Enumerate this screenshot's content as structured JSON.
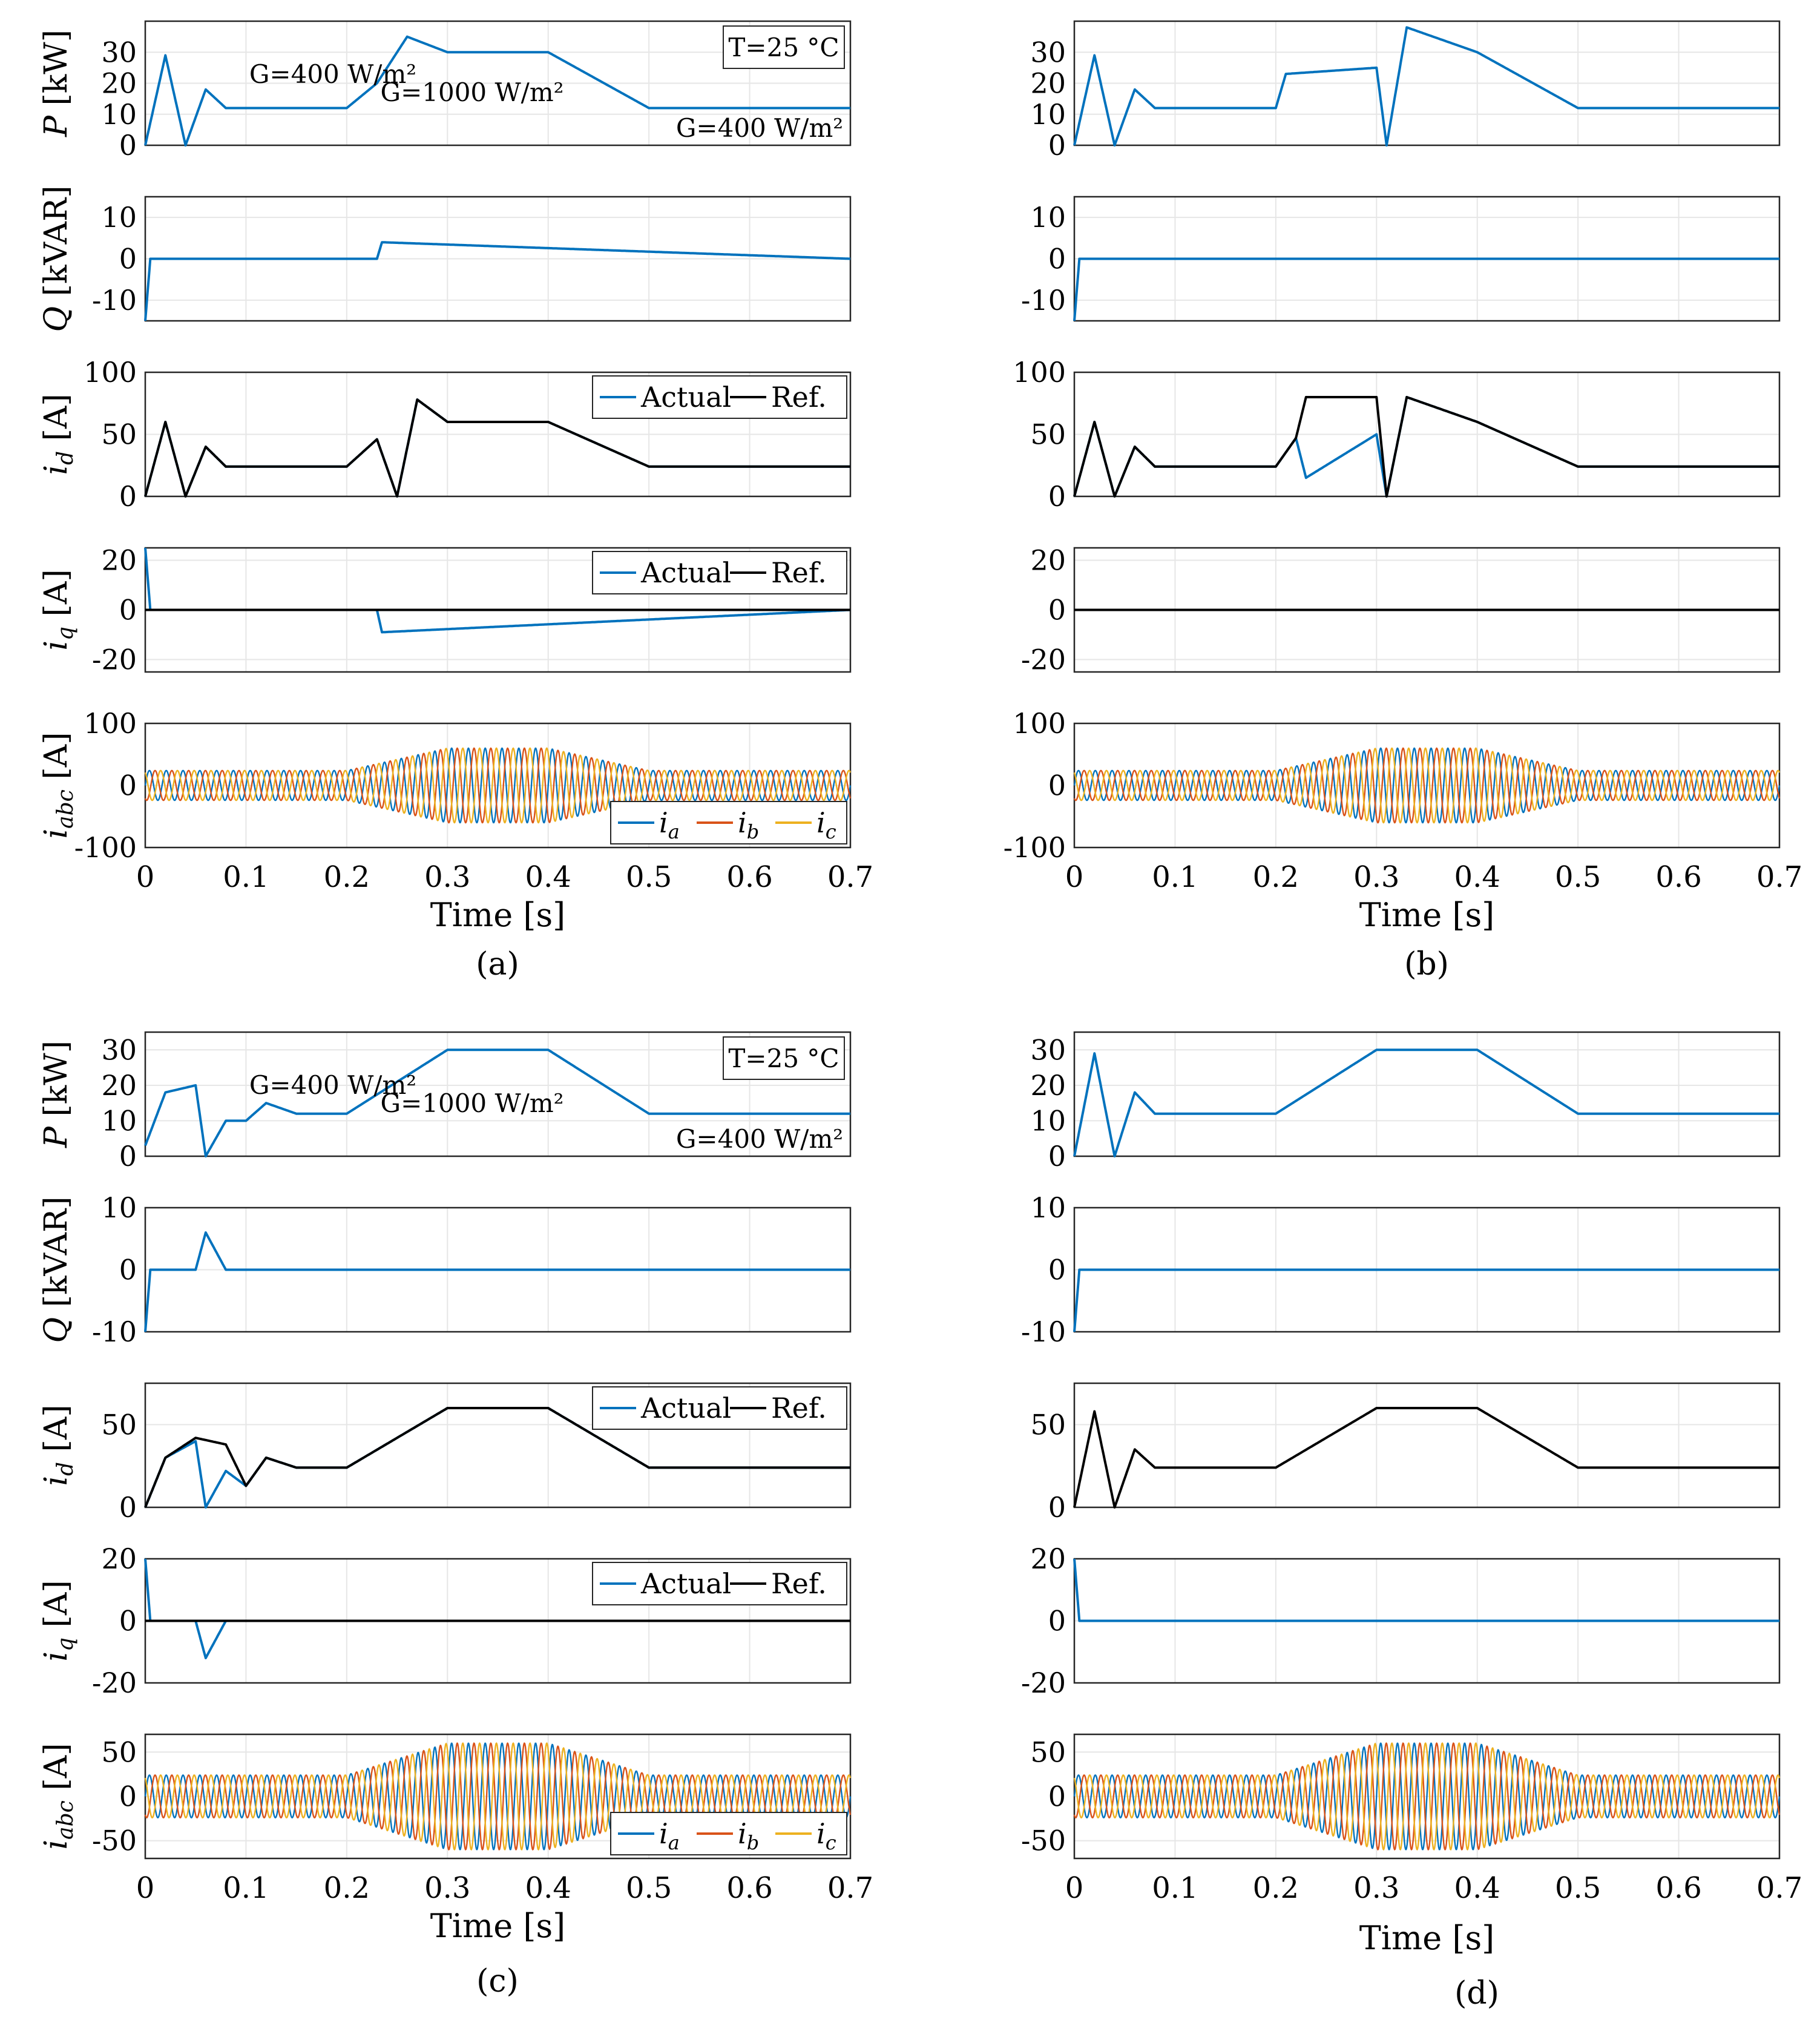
{
  "panels": [
    {
      "caption": "(a)",
      "temperature_label": "T=25 °C",
      "annotations": [
        "G=400 W/m²",
        "G=1000 W/m²",
        "G=400 W/m²"
      ],
      "xlabel": "Time [s]",
      "xticks": [
        "0",
        "0.1",
        "0.2",
        "0.3",
        "0.4",
        "0.5",
        "0.6",
        "0.7"
      ],
      "subplots": [
        {
          "ylabel": "P [kW]",
          "yticks": [
            "0",
            "10",
            "20",
            "30"
          ],
          "ylim": [
            0,
            40
          ]
        },
        {
          "ylabel": "Q [kVAR]",
          "yticks": [
            "-10",
            "0",
            "10"
          ],
          "ylim": [
            -15,
            15
          ]
        },
        {
          "ylabel": "i_d [A]",
          "yticks": [
            "0",
            "50",
            "100"
          ],
          "ylim": [
            0,
            100
          ],
          "legend": [
            "Actual",
            "Ref."
          ]
        },
        {
          "ylabel": "i_q [A]",
          "yticks": [
            "-20",
            "0",
            "20"
          ],
          "ylim": [
            -25,
            25
          ],
          "legend": [
            "Actual",
            "Ref."
          ]
        },
        {
          "ylabel": "i_abc [A]",
          "yticks": [
            "-100",
            "0",
            "100"
          ],
          "ylim": [
            -100,
            100
          ],
          "legend": [
            "i_a",
            "i_b",
            "i_c"
          ]
        }
      ]
    },
    {
      "caption": "(b)",
      "xlabel": "Time [s]",
      "xticks": [
        "0",
        "0.1",
        "0.2",
        "0.3",
        "0.4",
        "0.5",
        "0.6",
        "0.7"
      ],
      "subplots": [
        {
          "ylabel": "",
          "yticks": [
            "0",
            "10",
            "20",
            "30"
          ],
          "ylim": [
            0,
            40
          ]
        },
        {
          "ylabel": "",
          "yticks": [
            "-10",
            "0",
            "10"
          ],
          "ylim": [
            -15,
            15
          ]
        },
        {
          "ylabel": "",
          "yticks": [
            "0",
            "50",
            "100"
          ],
          "ylim": [
            0,
            100
          ]
        },
        {
          "ylabel": "",
          "yticks": [
            "-20",
            "0",
            "20"
          ],
          "ylim": [
            -25,
            25
          ]
        },
        {
          "ylabel": "",
          "yticks": [
            "-100",
            "0",
            "100"
          ],
          "ylim": [
            -100,
            100
          ]
        }
      ]
    },
    {
      "caption": "(c)",
      "temperature_label": "T=25 °C",
      "annotations": [
        "G=400 W/m²",
        "G=1000 W/m²",
        "G=400 W/m²"
      ],
      "xlabel": "Time [s]",
      "xticks": [
        "0",
        "0.1",
        "0.2",
        "0.3",
        "0.4",
        "0.5",
        "0.6",
        "0.7"
      ],
      "subplots": [
        {
          "ylabel": "P [kW]",
          "yticks": [
            "0",
            "10",
            "20",
            "30"
          ],
          "ylim": [
            0,
            35
          ]
        },
        {
          "ylabel": "Q [kVAR]",
          "yticks": [
            "-10",
            "0",
            "10"
          ],
          "ylim": [
            -10,
            10
          ]
        },
        {
          "ylabel": "i_d [A]",
          "yticks": [
            "0",
            "50"
          ],
          "ylim": [
            0,
            75
          ],
          "legend": [
            "Actual",
            "Ref."
          ]
        },
        {
          "ylabel": "i_q [A]",
          "yticks": [
            "-20",
            "0",
            "20"
          ],
          "ylim": [
            -20,
            20
          ],
          "legend": [
            "Actual",
            "Ref."
          ]
        },
        {
          "ylabel": "i_abc [A]",
          "yticks": [
            "-50",
            "0",
            "50"
          ],
          "ylim": [
            -70,
            70
          ],
          "legend": [
            "i_a",
            "i_b",
            "i_c"
          ]
        }
      ]
    },
    {
      "caption": "(d)",
      "xlabel": "Time [s]",
      "xticks": [
        "0",
        "0.1",
        "0.2",
        "0.3",
        "0.4",
        "0.5",
        "0.6",
        "0.7"
      ],
      "subplots": [
        {
          "ylabel": "",
          "yticks": [
            "0",
            "10",
            "20",
            "30"
          ],
          "ylim": [
            0,
            35
          ]
        },
        {
          "ylabel": "",
          "yticks": [
            "-10",
            "0",
            "10"
          ],
          "ylim": [
            -10,
            10
          ]
        },
        {
          "ylabel": "",
          "yticks": [
            "0",
            "50"
          ],
          "ylim": [
            0,
            75
          ]
        },
        {
          "ylabel": "",
          "yticks": [
            "-20",
            "0",
            "20"
          ],
          "ylim": [
            -20,
            20
          ]
        },
        {
          "ylabel": "",
          "yticks": [
            "-50",
            "0",
            "50"
          ],
          "ylim": [
            -70,
            70
          ]
        }
      ]
    }
  ],
  "chart_data": [
    {
      "type": "line",
      "title": "",
      "xlabel": "Time [s]",
      "xlim": [
        0,
        0.7
      ],
      "series": [
        {
          "name": "P",
          "x": [
            0,
            0.02,
            0.04,
            0.06,
            0.08,
            0.2,
            0.23,
            0.26,
            0.3,
            0.4,
            0.5,
            0.52,
            0.7
          ],
          "values": [
            0,
            29,
            0,
            18,
            12,
            12,
            20,
            35,
            30,
            30,
            12,
            12,
            12
          ]
        },
        {
          "name": "Q",
          "x": [
            0,
            0.005,
            0.1,
            0.23,
            0.235,
            0.7
          ],
          "values": [
            -15,
            0,
            0,
            0,
            4,
            0
          ]
        },
        {
          "name": "i_d Actual",
          "x": [
            0,
            0.02,
            0.04,
            0.06,
            0.08,
            0.2,
            0.23,
            0.25,
            0.27,
            0.3,
            0.4,
            0.5,
            0.52,
            0.7
          ],
          "values": [
            0,
            60,
            0,
            40,
            24,
            24,
            46,
            0,
            78,
            60,
            60,
            24,
            24,
            24
          ]
        },
        {
          "name": "i_d Ref.",
          "x": [
            0,
            0.02,
            0.04,
            0.06,
            0.08,
            0.2,
            0.23,
            0.25,
            0.27,
            0.3,
            0.4,
            0.5,
            0.52,
            0.7
          ],
          "values": [
            0,
            60,
            0,
            40,
            24,
            24,
            46,
            0,
            78,
            60,
            60,
            24,
            24,
            24
          ]
        },
        {
          "name": "i_q Actual",
          "x": [
            0,
            0.005,
            0.1,
            0.23,
            0.235,
            0.7
          ],
          "values": [
            25,
            0,
            0,
            0,
            -9,
            0
          ]
        },
        {
          "name": "i_q Ref.",
          "x": [
            0,
            0.7
          ],
          "values": [
            0,
            0
          ]
        }
      ],
      "series_colors": {
        "Actual": "#0072BD",
        "Ref.": "#000000",
        "i_a": "#0072BD",
        "i_b": "#D95319",
        "i_c": "#EDB120"
      },
      "abc_amplitude": {
        "t": [
          0,
          0.2,
          0.3,
          0.4,
          0.5,
          0.7
        ],
        "amplitude": [
          24,
          24,
          60,
          60,
          24,
          24
        ]
      },
      "grid": true
    },
    {
      "type": "line",
      "title": "",
      "xlabel": "Time [s]",
      "xlim": [
        0,
        0.7
      ],
      "series": [
        {
          "name": "P",
          "x": [
            0,
            0.02,
            0.04,
            0.06,
            0.08,
            0.2,
            0.21,
            0.3,
            0.31,
            0.33,
            0.4,
            0.5,
            0.52,
            0.7
          ],
          "values": [
            0,
            29,
            0,
            18,
            12,
            12,
            23,
            25,
            0,
            38,
            30,
            12,
            12,
            12
          ]
        },
        {
          "name": "Q",
          "x": [
            0,
            0.005,
            0.22,
            0.3,
            0.7
          ],
          "values": [
            -15,
            0,
            0,
            0,
            0
          ]
        },
        {
          "name": "i_d Actual",
          "x": [
            0,
            0.02,
            0.04,
            0.06,
            0.08,
            0.2,
            0.22,
            0.23,
            0.3,
            0.31,
            0.33,
            0.4,
            0.5,
            0.52,
            0.7
          ],
          "values": [
            0,
            60,
            0,
            40,
            24,
            24,
            47,
            15,
            50,
            0,
            80,
            60,
            24,
            24,
            24
          ]
        },
        {
          "name": "i_d Ref.",
          "x": [
            0,
            0.02,
            0.04,
            0.06,
            0.08,
            0.2,
            0.22,
            0.23,
            0.3,
            0.31,
            0.33,
            0.4,
            0.5,
            0.52,
            0.7
          ],
          "values": [
            0,
            60,
            0,
            40,
            24,
            24,
            47,
            80,
            80,
            0,
            80,
            60,
            24,
            24,
            24
          ]
        },
        {
          "name": "i_q Ref.",
          "x": [
            0,
            0.7
          ],
          "values": [
            0,
            0
          ]
        }
      ],
      "abc_amplitude": {
        "t": [
          0,
          0.2,
          0.3,
          0.4,
          0.5,
          0.7
        ],
        "amplitude": [
          24,
          24,
          60,
          60,
          24,
          24
        ]
      },
      "grid": true
    },
    {
      "type": "line",
      "title": "",
      "xlabel": "Time [s]",
      "xlim": [
        0,
        0.7
      ],
      "series": [
        {
          "name": "P",
          "x": [
            0,
            0.02,
            0.05,
            0.06,
            0.08,
            0.1,
            0.12,
            0.15,
            0.2,
            0.3,
            0.4,
            0.5,
            0.7
          ],
          "values": [
            3,
            18,
            20,
            0,
            10,
            10,
            15,
            12,
            12,
            30,
            30,
            12,
            12
          ]
        },
        {
          "name": "Q",
          "x": [
            0,
            0.005,
            0.05,
            0.06,
            0.08,
            0.7
          ],
          "values": [
            -10,
            0,
            0,
            6,
            0,
            0
          ]
        },
        {
          "name": "i_d Actual",
          "x": [
            0,
            0.02,
            0.05,
            0.06,
            0.08,
            0.1,
            0.12,
            0.15,
            0.2,
            0.3,
            0.4,
            0.5,
            0.7
          ],
          "values": [
            0,
            30,
            40,
            0,
            22,
            13,
            30,
            24,
            24,
            60,
            60,
            24,
            24
          ]
        },
        {
          "name": "i_d Ref.",
          "x": [
            0,
            0.02,
            0.05,
            0.08,
            0.1,
            0.12,
            0.15,
            0.2,
            0.3,
            0.4,
            0.5,
            0.7
          ],
          "values": [
            0,
            30,
            42,
            38,
            13,
            30,
            24,
            24,
            60,
            60,
            24,
            24
          ]
        },
        {
          "name": "i_q Actual",
          "x": [
            0,
            0.005,
            0.05,
            0.06,
            0.08,
            0.7
          ],
          "values": [
            20,
            0,
            0,
            -12,
            0,
            0
          ]
        },
        {
          "name": "i_q Ref.",
          "x": [
            0,
            0.7
          ],
          "values": [
            0,
            0
          ]
        }
      ],
      "abc_amplitude": {
        "t": [
          0,
          0.2,
          0.3,
          0.4,
          0.5,
          0.7
        ],
        "amplitude": [
          24,
          24,
          60,
          60,
          24,
          24
        ]
      },
      "grid": true
    },
    {
      "type": "line",
      "title": "",
      "xlabel": "Time [s]",
      "xlim": [
        0,
        0.7
      ],
      "series": [
        {
          "name": "P",
          "x": [
            0,
            0.02,
            0.04,
            0.06,
            0.08,
            0.2,
            0.3,
            0.4,
            0.5,
            0.7
          ],
          "values": [
            0,
            29,
            0,
            18,
            12,
            12,
            30,
            30,
            12,
            12
          ]
        },
        {
          "name": "Q",
          "x": [
            0,
            0.005,
            0.7
          ],
          "values": [
            -10,
            0,
            0
          ]
        },
        {
          "name": "i_d Ref.",
          "x": [
            0,
            0.02,
            0.04,
            0.06,
            0.08,
            0.2,
            0.3,
            0.4,
            0.5,
            0.7
          ],
          "values": [
            0,
            58,
            0,
            35,
            24,
            24,
            60,
            60,
            24,
            24
          ]
        },
        {
          "name": "i_q Actual",
          "x": [
            0,
            0.005,
            0.7
          ],
          "values": [
            20,
            0,
            0
          ]
        }
      ],
      "abc_amplitude": {
        "t": [
          0,
          0.2,
          0.3,
          0.4,
          0.5,
          0.7
        ],
        "amplitude": [
          24,
          24,
          60,
          60,
          24,
          24
        ]
      },
      "grid": true
    }
  ]
}
